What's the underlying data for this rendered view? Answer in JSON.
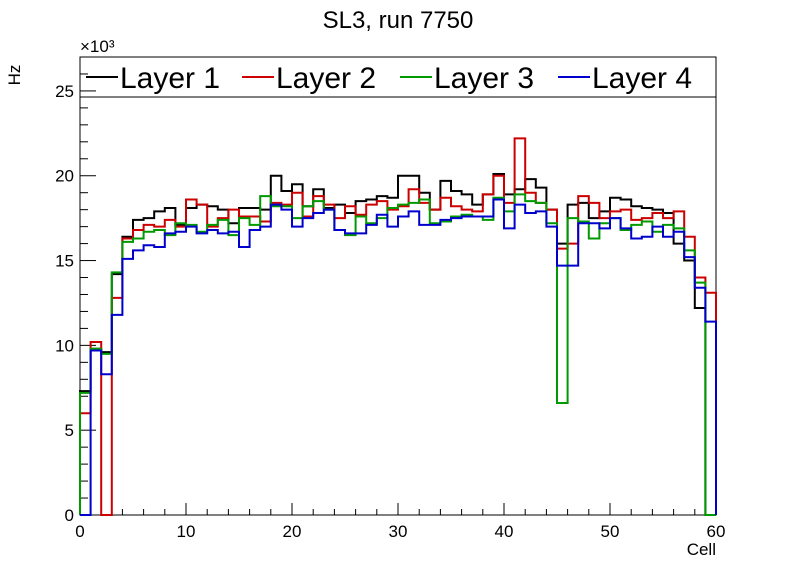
{
  "chart_data": {
    "type": "step-histogram",
    "title": "SL3, run 7750",
    "xlabel": "Cell",
    "ylabel": "Hz",
    "y_multiplier": "×10³",
    "x_bin_width": 1,
    "xlim": [
      0,
      60
    ],
    "ylim": [
      0,
      27
    ],
    "xticks": [
      0,
      10,
      20,
      30,
      40,
      50,
      60
    ],
    "yticks": [
      0,
      5,
      10,
      15,
      20,
      25
    ],
    "tick_labels_x": [
      "0",
      "10",
      "20",
      "30",
      "40",
      "50",
      "60"
    ],
    "tick_labels_y": [
      "0",
      "5",
      "10",
      "15",
      "20",
      "25"
    ],
    "legend_position": "top",
    "series": [
      {
        "name": "Layer 1",
        "color": "#000000",
        "values": [
          7.3,
          9.8,
          9.6,
          14.2,
          16.4,
          17.4,
          17.5,
          17.9,
          18.1,
          17.1,
          18.1,
          18.3,
          18.2,
          18.0,
          17.2,
          18.1,
          18.1,
          18.0,
          20.0,
          19.1,
          19.5,
          18.2,
          19.2,
          18.1,
          18.3,
          17.8,
          18.5,
          18.6,
          18.8,
          18.7,
          20.0,
          20.0,
          19.0,
          18.0,
          19.7,
          19.1,
          18.9,
          18.3,
          18.9,
          20.1,
          18.9,
          19.2,
          19.8,
          19.3,
          18.0,
          16.0,
          18.3,
          18.4,
          17.5,
          17.9,
          18.7,
          18.6,
          18.2,
          18.1,
          18.0,
          17.8,
          16.0,
          15.0,
          12.2,
          0.0
        ],
        "values_note": "Layer 1 approx from visible plot"
      },
      {
        "name": "Layer 2",
        "color": "#cc0000",
        "values": [
          6.0,
          10.2,
          0.0,
          12.8,
          16.3,
          16.8,
          17.1,
          17.0,
          17.4,
          17.0,
          18.6,
          18.3,
          17.0,
          17.5,
          18.0,
          17.6,
          17.6,
          17.3,
          18.4,
          18.3,
          19.0,
          17.6,
          18.8,
          18.3,
          17.5,
          18.2,
          17.7,
          18.3,
          18.5,
          18.0,
          18.2,
          19.2,
          18.4,
          18.0,
          18.7,
          18.2,
          18.0,
          17.9,
          18.9,
          20.0,
          18.4,
          22.2,
          19.0,
          18.4,
          18.0,
          15.7,
          16.0,
          18.8,
          18.4,
          17.5,
          17.9,
          18.0,
          17.4,
          17.5,
          17.8,
          17.5,
          17.9,
          16.4,
          14.0,
          13.1
        ],
        "values_note": "Layer 2 approx"
      },
      {
        "name": "Layer 3",
        "color": "#009900",
        "values": [
          7.2,
          9.8,
          9.5,
          14.3,
          16.1,
          16.3,
          16.7,
          16.8,
          16.5,
          17.2,
          17.1,
          16.7,
          17.1,
          17.4,
          16.5,
          17.5,
          17.1,
          18.8,
          18.2,
          18.2,
          17.5,
          18.2,
          18.5,
          18.0,
          16.8,
          16.5,
          17.6,
          17.2,
          17.5,
          18.1,
          18.3,
          18.4,
          18.6,
          17.2,
          17.3,
          17.6,
          17.7,
          17.6,
          17.4,
          18.7,
          17.9,
          18.9,
          18.5,
          18.4,
          17.2,
          6.6,
          17.5,
          17.3,
          16.3,
          17.2,
          17.5,
          16.8,
          17.1,
          17.3,
          16.7,
          17.1,
          16.9,
          15.6,
          13.7,
          0.0
        ],
        "values_note": "Layer 3 approx"
      },
      {
        "name": "Layer 4",
        "color": "#0000cc",
        "values": [
          0.0,
          9.7,
          8.3,
          11.8,
          15.1,
          15.6,
          15.9,
          15.8,
          16.6,
          16.7,
          17.0,
          16.6,
          16.8,
          16.6,
          16.7,
          15.8,
          16.8,
          17.0,
          18.3,
          18.0,
          17.0,
          17.5,
          17.8,
          18.0,
          16.8,
          16.6,
          16.6,
          17.1,
          17.7,
          17.0,
          17.6,
          17.9,
          17.1,
          17.1,
          17.4,
          17.5,
          17.6,
          17.6,
          17.6,
          18.6,
          16.9,
          18.3,
          17.8,
          17.9,
          17.0,
          14.7,
          14.7,
          17.2,
          17.2,
          16.9,
          17.5,
          16.9,
          16.3,
          16.4,
          17.0,
          16.4,
          16.7,
          15.2,
          13.4,
          11.4
        ],
        "values_note": "Layer 4 approx"
      }
    ]
  }
}
